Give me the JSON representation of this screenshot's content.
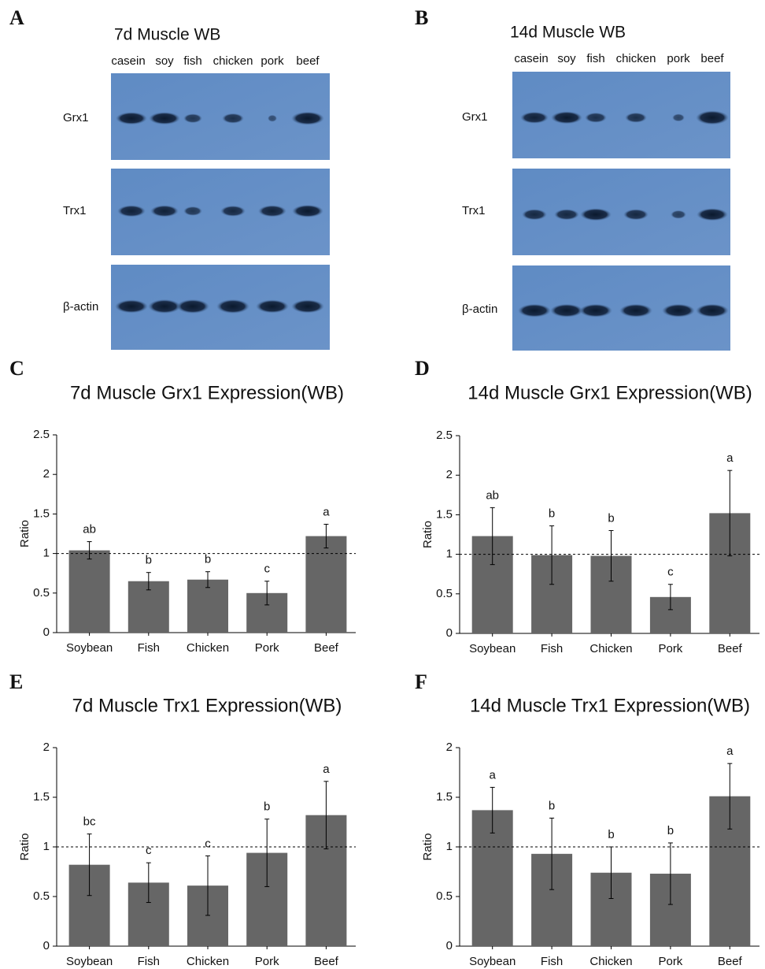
{
  "blots": [
    {
      "panel": "A",
      "title": "7d Muscle WB",
      "lanes": [
        "casein",
        "soy",
        "fish",
        "chicken",
        "pork",
        "beef"
      ],
      "rows": [
        "Grx1",
        "Trx1",
        "β-actin"
      ]
    },
    {
      "panel": "B",
      "title": "14d Muscle WB",
      "lanes": [
        "casein",
        "soy",
        "fish",
        "chicken",
        "pork",
        "beef"
      ],
      "rows": [
        "Grx1",
        "Trx1",
        "β-actin"
      ]
    }
  ],
  "chart_data": [
    {
      "type": "bar",
      "panel": "C",
      "title": "7d Muscle Grx1 Expression(WB)",
      "y_label": "Ratio",
      "color": "#666666",
      "categories": [
        "Soybean",
        "Fish",
        "Chicken",
        "Pork",
        "Beef"
      ],
      "values": [
        1.04,
        0.65,
        0.67,
        0.5,
        1.22
      ],
      "errors": [
        0.11,
        0.11,
        0.1,
        0.15,
        0.15
      ],
      "letters": [
        "ab",
        "b",
        "b",
        "c",
        "a"
      ],
      "ylim": [
        0,
        2.5
      ],
      "yticks": [
        0,
        0.5,
        1,
        1.5,
        2,
        2.5
      ],
      "reference_line": 1
    },
    {
      "type": "bar",
      "panel": "D",
      "title": "14d Muscle Grx1 Expression(WB)",
      "y_label": "Ratio",
      "color": "#666666",
      "categories": [
        "Soybean",
        "Fish",
        "Chicken",
        "Pork",
        "Beef"
      ],
      "values": [
        1.23,
        0.99,
        0.98,
        0.46,
        1.52
      ],
      "errors": [
        0.36,
        0.37,
        0.32,
        0.16,
        0.54
      ],
      "letters": [
        "ab",
        "b",
        "b",
        "c",
        "a"
      ],
      "ylim": [
        0,
        2.5
      ],
      "yticks": [
        0,
        0.5,
        1,
        1.5,
        2,
        2.5
      ],
      "reference_line": 1
    },
    {
      "type": "bar",
      "panel": "E",
      "title": "7d Muscle Trx1 Expression(WB)",
      "y_label": "Ratio",
      "color": "#666666",
      "categories": [
        "Soybean",
        "Fish",
        "Chicken",
        "Pork",
        "Beef"
      ],
      "values": [
        0.82,
        0.64,
        0.61,
        0.94,
        1.32
      ],
      "errors": [
        0.31,
        0.2,
        0.3,
        0.34,
        0.34
      ],
      "letters": [
        "bc",
        "c",
        "c",
        "b",
        "a"
      ],
      "ylim": [
        0,
        2
      ],
      "yticks": [
        0,
        0.5,
        1,
        1.5,
        2
      ],
      "reference_line": 1
    },
    {
      "type": "bar",
      "panel": "F",
      "title": "14d Muscle Trx1 Expression(WB)",
      "y_label": "Ratio",
      "color": "#666666",
      "categories": [
        "Soybean",
        "Fish",
        "Chicken",
        "Pork",
        "Beef"
      ],
      "values": [
        1.37,
        0.93,
        0.74,
        0.73,
        1.51
      ],
      "errors": [
        0.23,
        0.36,
        0.26,
        0.31,
        0.33
      ],
      "letters": [
        "a",
        "b",
        "b",
        "b",
        "a"
      ],
      "ylim": [
        0,
        2
      ],
      "yticks": [
        0,
        0.5,
        1,
        1.5,
        2
      ],
      "reference_line": 1
    }
  ]
}
